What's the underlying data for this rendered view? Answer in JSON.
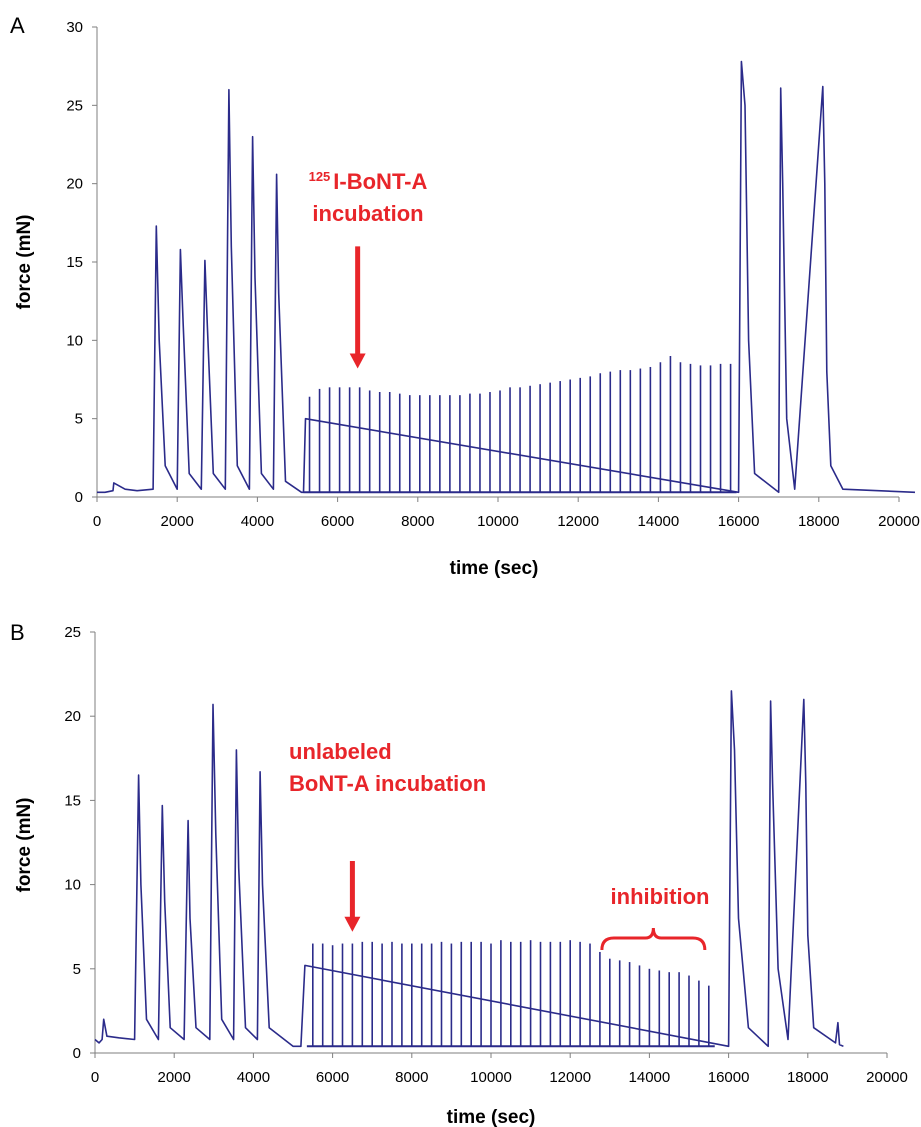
{
  "colors": {
    "trace": "#2b2b8a",
    "annotation": "#e8252a",
    "axis": "#7f7f7f"
  },
  "chart_data": [
    {
      "panel_label": "A",
      "type": "line",
      "xlabel": "time (sec)",
      "ylabel": "force (mN)",
      "xlim": [
        0,
        20000
      ],
      "ylim": [
        0,
        30
      ],
      "xticks": [
        0,
        2000,
        4000,
        6000,
        8000,
        10000,
        12000,
        14000,
        16000,
        18000,
        20000
      ],
      "yticks": [
        0,
        5,
        10,
        15,
        20,
        25,
        30
      ],
      "grid": false,
      "baseline": 0.3,
      "end_x": 20400,
      "series": [
        {
          "x": [
            0,
            200,
            400,
            420,
            700,
            1000,
            1400,
            1480,
            1550,
            1700,
            2000,
            2080,
            2150,
            2300,
            2600,
            2690,
            2750,
            2900,
            3200,
            3290,
            3350,
            3500,
            3800,
            3880,
            3940,
            4100,
            4400,
            4480,
            4530,
            4700,
            5100,
            5150,
            5200,
            16000,
            16070,
            16160,
            16250,
            16400,
            17000,
            17050,
            17100,
            17200,
            17400,
            18100,
            18150,
            18200,
            18300,
            18600,
            20400
          ],
          "y": [
            0.3,
            0.3,
            0.4,
            0.9,
            0.5,
            0.4,
            0.5,
            17.3,
            10,
            2,
            0.5,
            15.8,
            11,
            1.5,
            0.5,
            15.1,
            11,
            1.5,
            0.5,
            26.0,
            16,
            2,
            0.5,
            23.0,
            14,
            1.5,
            0.5,
            20.6,
            13,
            1,
            0.3,
            0.3,
            5.0,
            0.3,
            27.8,
            25,
            10,
            1.5,
            0.3,
            26.1,
            20,
            5,
            0.5,
            26.2,
            20,
            8,
            2,
            0.5,
            0.3
          ]
        },
        {
          "x": [
            5300,
            5550,
            5800,
            6050,
            6300,
            6550,
            6800,
            7050,
            7300,
            7550,
            7800,
            8050,
            8300,
            8550,
            8800,
            9050,
            9300,
            9550,
            9800,
            10050,
            10300,
            10550,
            10800,
            11050,
            11300,
            11550,
            11800,
            12050,
            12300,
            12550,
            12800,
            13050,
            13300,
            13550,
            13800,
            14050,
            14300,
            14550,
            14800,
            15050,
            15300,
            15550,
            15800
          ],
          "y": [
            6.4,
            6.9,
            7.0,
            7.0,
            7.0,
            7.0,
            6.8,
            6.7,
            6.7,
            6.6,
            6.5,
            6.5,
            6.5,
            6.5,
            6.5,
            6.5,
            6.6,
            6.6,
            6.7,
            6.8,
            7.0,
            7.0,
            7.1,
            7.2,
            7.3,
            7.4,
            7.5,
            7.6,
            7.7,
            7.9,
            8.0,
            8.1,
            8.1,
            8.2,
            8.3,
            8.6,
            9.0,
            8.6,
            8.5,
            8.4,
            8.4,
            8.5,
            8.5
          ]
        }
      ],
      "annotations": [
        {
          "superscript": "125",
          "line1": "I-BoNT-A",
          "line2": "incubation",
          "arrow_x": 6500,
          "arrow_y_top": 16.0,
          "arrow_y_tip": 8.2
        }
      ]
    },
    {
      "panel_label": "B",
      "type": "line",
      "xlabel": "time (sec)",
      "ylabel": "force (mN)",
      "xlim": [
        0,
        20000
      ],
      "ylim": [
        0,
        25
      ],
      "xticks": [
        0,
        2000,
        4000,
        6000,
        8000,
        10000,
        12000,
        14000,
        16000,
        18000,
        20000
      ],
      "yticks": [
        0,
        5,
        10,
        15,
        20,
        25
      ],
      "grid": false,
      "baseline": 0.4,
      "end_x": 18900,
      "series": [
        {
          "x": [
            0,
            100,
            180,
            220,
            300,
            600,
            1000,
            1100,
            1160,
            1300,
            1600,
            1700,
            1760,
            1900,
            2250,
            2350,
            2400,
            2550,
            2900,
            2980,
            3050,
            3200,
            3500,
            3570,
            3630,
            3800,
            4100,
            4170,
            4230,
            4400,
            5000,
            5200,
            5300,
            16000,
            16070,
            16150,
            16250,
            16500,
            17000,
            17060,
            17110,
            17250,
            17500,
            17900,
            17950,
            18000,
            18150,
            18700,
            18760,
            18800,
            18900
          ],
          "y": [
            0.8,
            0.6,
            0.8,
            2.0,
            1.0,
            0.9,
            0.8,
            16.5,
            10,
            2,
            0.8,
            14.7,
            9,
            1.5,
            0.8,
            13.8,
            8,
            1.5,
            0.8,
            20.7,
            13,
            2,
            0.8,
            18.0,
            11,
            1.5,
            0.8,
            16.7,
            10,
            1.5,
            0.4,
            0.4,
            5.2,
            0.4,
            21.5,
            18,
            8,
            1.5,
            0.4,
            20.9,
            16,
            5,
            0.8,
            21.0,
            16,
            7,
            1.5,
            0.6,
            1.8,
            0.5,
            0.4
          ]
        },
        {
          "x": [
            5500,
            5750,
            6000,
            6250,
            6500,
            6750,
            7000,
            7250,
            7500,
            7750,
            8000,
            8250,
            8500,
            8750,
            9000,
            9250,
            9500,
            9750,
            10000,
            10250,
            10500,
            10750,
            11000,
            11250,
            11500,
            11750,
            12000,
            12250,
            12500,
            12750,
            13000,
            13250,
            13500,
            13750,
            14000,
            14250,
            14500,
            14750,
            15000,
            15250,
            15500
          ],
          "y": [
            6.5,
            6.5,
            6.4,
            6.5,
            6.5,
            6.6,
            6.6,
            6.5,
            6.6,
            6.5,
            6.5,
            6.5,
            6.5,
            6.6,
            6.5,
            6.6,
            6.6,
            6.6,
            6.5,
            6.7,
            6.6,
            6.6,
            6.7,
            6.6,
            6.6,
            6.6,
            6.7,
            6.6,
            6.5,
            6.0,
            5.6,
            5.5,
            5.4,
            5.2,
            5.0,
            4.9,
            4.8,
            4.8,
            4.6,
            4.3,
            4.0
          ]
        }
      ],
      "annotations": [
        {
          "line1": "unlabeled",
          "line2": "BoNT-A incubation",
          "arrow_x": 6500,
          "arrow_y_top": 11.4,
          "arrow_y_tip": 7.2
        },
        {
          "text": "inhibition",
          "brace_x_start": 12800,
          "brace_x_end": 15400,
          "brace_y": 6.0
        }
      ]
    }
  ]
}
